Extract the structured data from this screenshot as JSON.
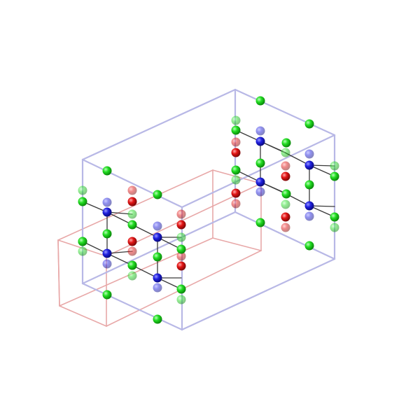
{
  "scene": {
    "type": "crystal-structure-viewer",
    "background": "#ffffff",
    "colors": {
      "cell_blue": "#b8b8e6",
      "cell_red": "#e8a8a8",
      "bond": "#3a3a3a",
      "atom_green": "#1ed61e",
      "atom_blue": "#1e1ed6",
      "atom_red": "#e01010"
    },
    "atoms": [
      {
        "element": "green",
        "cell": "blue",
        "faded": false
      },
      {
        "element": "blue",
        "cell": "blue",
        "faded": false
      },
      {
        "element": "red",
        "cell": "blue",
        "faded": false
      }
    ]
  }
}
